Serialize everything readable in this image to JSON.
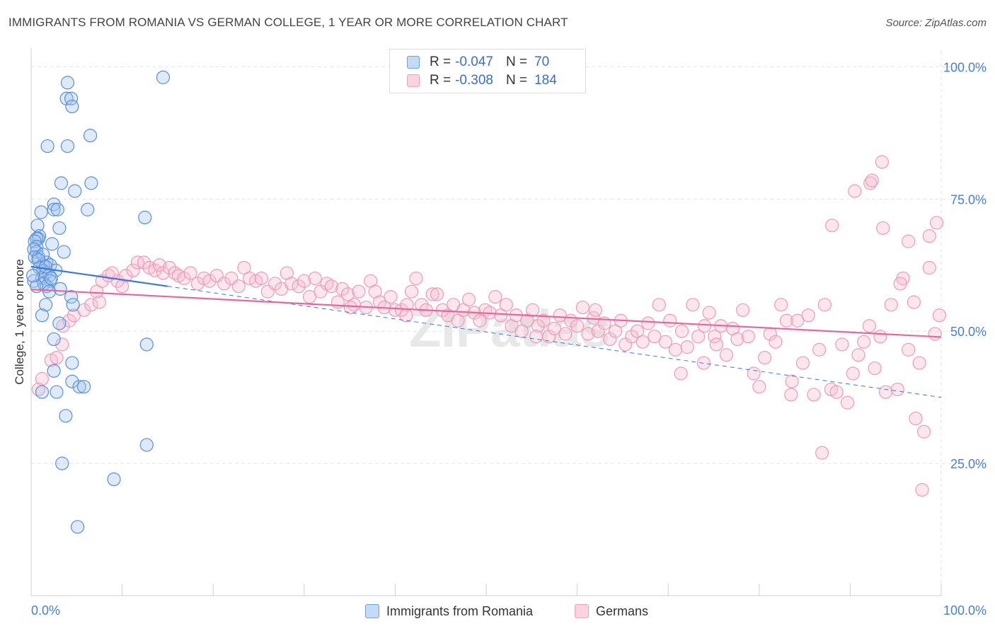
{
  "title": "IMMIGRANTS FROM ROMANIA VS GERMAN COLLEGE, 1 YEAR OR MORE CORRELATION CHART",
  "source": "Source: ZipAtlas.com",
  "watermark": "ZIPatlas",
  "legend": {
    "r_label": "R =",
    "n_label": "N =",
    "rows": [
      {
        "r": "-0.047",
        "n": "70",
        "color": "#6a9fe0"
      },
      {
        "r": "-0.308",
        "n": "184",
        "color": "#f0a0b8"
      }
    ]
  },
  "bottom_legend": [
    {
      "label": "Immigrants from Romania",
      "color": "#6a9fe0"
    },
    {
      "label": "Germans",
      "color": "#f0a0b8"
    }
  ],
  "chart_data": {
    "type": "scatter",
    "title": "IMMIGRANTS FROM ROMANIA VS GERMAN COLLEGE, 1 YEAR OR MORE CORRELATION CHART",
    "xlabel": "",
    "ylabel": "College, 1 year or more",
    "xlim": [
      0,
      100
    ],
    "ylim": [
      0,
      103
    ],
    "x_tick_labels": [
      "0.0%",
      "100.0%"
    ],
    "y_ticks": [
      25,
      50,
      75,
      100
    ],
    "y_tick_labels": [
      "25.0%",
      "50.0%",
      "75.0%",
      "100.0%"
    ],
    "grid": true,
    "legend_position": "top-center",
    "series": [
      {
        "name": "Immigrants from Romania",
        "color": "#6a9fe0",
        "trend": {
          "x": [
            0,
            15
          ],
          "y": [
            62.2,
            58.5
          ],
          "dashed_extension": {
            "x": [
              15,
              100
            ],
            "y": [
              58.5,
              37.5
            ]
          }
        },
        "points": [
          [
            4,
            97
          ],
          [
            14.5,
            98
          ],
          [
            3.9,
            94
          ],
          [
            4.4,
            94
          ],
          [
            4.5,
            92.5
          ],
          [
            6.5,
            87
          ],
          [
            1.8,
            85
          ],
          [
            4,
            85
          ],
          [
            3.3,
            78
          ],
          [
            6.6,
            78
          ],
          [
            4.8,
            76.5
          ],
          [
            2.5,
            74
          ],
          [
            6.2,
            73
          ],
          [
            2.5,
            73
          ],
          [
            2.9,
            73
          ],
          [
            1.1,
            72.5
          ],
          [
            12.5,
            71.5
          ],
          [
            0.7,
            70
          ],
          [
            3.1,
            69.5
          ],
          [
            0.9,
            68
          ],
          [
            0.8,
            67.5
          ],
          [
            0.6,
            67.5
          ],
          [
            0.4,
            67
          ],
          [
            2.3,
            66.5
          ],
          [
            0.6,
            66
          ],
          [
            0.6,
            65
          ],
          [
            0.3,
            65.5
          ],
          [
            3.6,
            65
          ],
          [
            0.8,
            64
          ],
          [
            0.4,
            64
          ],
          [
            1.7,
            63
          ],
          [
            1.3,
            62.5
          ],
          [
            2.1,
            62.5
          ],
          [
            1.3,
            61.5
          ],
          [
            2.7,
            61.5
          ],
          [
            1.6,
            61
          ],
          [
            2,
            60.5
          ],
          [
            1.2,
            60
          ],
          [
            0.3,
            59.5
          ],
          [
            2.1,
            59.5
          ],
          [
            1.4,
            59
          ],
          [
            1.7,
            58.5
          ],
          [
            0.6,
            58.5
          ],
          [
            2,
            57.5
          ],
          [
            4.4,
            56.5
          ],
          [
            1.6,
            55
          ],
          [
            4.6,
            55
          ],
          [
            1.2,
            53
          ],
          [
            3.1,
            51.5
          ],
          [
            2.5,
            48.5
          ],
          [
            12.7,
            47.5
          ],
          [
            4.5,
            44
          ],
          [
            2.5,
            42.5
          ],
          [
            4.5,
            40.5
          ],
          [
            5.3,
            39.5
          ],
          [
            5.8,
            39.5
          ],
          [
            2.8,
            38.5
          ],
          [
            1.2,
            38.5
          ],
          [
            3.8,
            34
          ],
          [
            12.7,
            28.5
          ],
          [
            3.4,
            25
          ],
          [
            9.1,
            22
          ],
          [
            5.1,
            13
          ],
          [
            1.3,
            64.5
          ],
          [
            0.8,
            63.5
          ],
          [
            2.2,
            60
          ],
          [
            3.2,
            58
          ],
          [
            0.9,
            62
          ],
          [
            1.6,
            62.2
          ],
          [
            0.2,
            60.5
          ]
        ]
      },
      {
        "name": "Germans",
        "color": "#f0a0b8",
        "trend": {
          "x": [
            0,
            100
          ],
          "y": [
            57.9,
            48.9
          ]
        },
        "points": [
          [
            1.2,
            41
          ],
          [
            0.8,
            39
          ],
          [
            2.2,
            44.5
          ],
          [
            2.8,
            45
          ],
          [
            3.4,
            47.5
          ],
          [
            3.5,
            51
          ],
          [
            4.2,
            52
          ],
          [
            4.7,
            53
          ],
          [
            5.8,
            54
          ],
          [
            6.6,
            55
          ],
          [
            7.5,
            55.5
          ],
          [
            7.2,
            57.5
          ],
          [
            7.8,
            59.5
          ],
          [
            8.5,
            60.5
          ],
          [
            9.5,
            59.5
          ],
          [
            10,
            58.5
          ],
          [
            8.9,
            61
          ],
          [
            10.4,
            60.5
          ],
          [
            11.2,
            61.5
          ],
          [
            11.7,
            63
          ],
          [
            12.4,
            63
          ],
          [
            13,
            62
          ],
          [
            13.6,
            61.5
          ],
          [
            14.1,
            62.5
          ],
          [
            14.5,
            61
          ],
          [
            15.2,
            62
          ],
          [
            15.8,
            61
          ],
          [
            16.2,
            60.5
          ],
          [
            16.8,
            60
          ],
          [
            17.5,
            61
          ],
          [
            18.3,
            59
          ],
          [
            19,
            60
          ],
          [
            19.6,
            59.5
          ],
          [
            20.4,
            60.5
          ],
          [
            21.2,
            59
          ],
          [
            22,
            60
          ],
          [
            22.8,
            58.5
          ],
          [
            23.4,
            62
          ],
          [
            24,
            60
          ],
          [
            24.7,
            59.5
          ],
          [
            25.3,
            60
          ],
          [
            26,
            57.5
          ],
          [
            26.8,
            59
          ],
          [
            27.5,
            58
          ],
          [
            28.1,
            61
          ],
          [
            28.6,
            59
          ],
          [
            29.4,
            58.5
          ],
          [
            30,
            59.5
          ],
          [
            30.6,
            56.5
          ],
          [
            31.2,
            60
          ],
          [
            31.8,
            57.5
          ],
          [
            32.5,
            59
          ],
          [
            33,
            58.5
          ],
          [
            33.7,
            55.5
          ],
          [
            34.2,
            58
          ],
          [
            34.8,
            57
          ],
          [
            35.5,
            55
          ],
          [
            36,
            57.5
          ],
          [
            36.8,
            54.5
          ],
          [
            37.3,
            59.5
          ],
          [
            37.8,
            57.5
          ],
          [
            38.3,
            55.5
          ],
          [
            38.8,
            54.5
          ],
          [
            39.5,
            56.5
          ],
          [
            40,
            54
          ],
          [
            40.7,
            54
          ],
          [
            41.3,
            55
          ],
          [
            41.8,
            57.5
          ],
          [
            42.3,
            60
          ],
          [
            42.9,
            55
          ],
          [
            43.4,
            54
          ],
          [
            44.1,
            57
          ],
          [
            44.6,
            57
          ],
          [
            45.2,
            54
          ],
          [
            45.8,
            53
          ],
          [
            46.4,
            55
          ],
          [
            46.9,
            52
          ],
          [
            47.5,
            54
          ],
          [
            48.1,
            56
          ],
          [
            48.7,
            53.5
          ],
          [
            49.3,
            52
          ],
          [
            49.9,
            54
          ],
          [
            50.4,
            53.5
          ],
          [
            51,
            56.5
          ],
          [
            51.6,
            53
          ],
          [
            52.2,
            55
          ],
          [
            52.8,
            51
          ],
          [
            53.3,
            53
          ],
          [
            53.9,
            50
          ],
          [
            54.5,
            52
          ],
          [
            55.1,
            54
          ],
          [
            55.7,
            51
          ],
          [
            56.3,
            52
          ],
          [
            56.9,
            49
          ],
          [
            57.5,
            50.5
          ],
          [
            58.1,
            53
          ],
          [
            58.7,
            49.5
          ],
          [
            59.3,
            52
          ],
          [
            60,
            51
          ],
          [
            60.6,
            54.5
          ],
          [
            61.2,
            49.5
          ],
          [
            61.8,
            52.5
          ],
          [
            62.3,
            50
          ],
          [
            63,
            51.5
          ],
          [
            63.6,
            48.5
          ],
          [
            64.2,
            50
          ],
          [
            64.8,
            52
          ],
          [
            65.3,
            47.5
          ],
          [
            66,
            49
          ],
          [
            66.6,
            50
          ],
          [
            67.2,
            48
          ],
          [
            67.8,
            51.5
          ],
          [
            68.5,
            49
          ],
          [
            69,
            55
          ],
          [
            69.7,
            48
          ],
          [
            70.2,
            52
          ],
          [
            70.8,
            46.5
          ],
          [
            71.5,
            50
          ],
          [
            72.1,
            47
          ],
          [
            72.7,
            55
          ],
          [
            73.3,
            49
          ],
          [
            74,
            51
          ],
          [
            74.5,
            53.5
          ],
          [
            75.1,
            49
          ],
          [
            75.8,
            51
          ],
          [
            76.4,
            45.5
          ],
          [
            77.1,
            50.5
          ],
          [
            77.6,
            48.5
          ],
          [
            78.2,
            54
          ],
          [
            78.8,
            49
          ],
          [
            79.4,
            42
          ],
          [
            80,
            39.5
          ],
          [
            80.6,
            45
          ],
          [
            81.2,
            49.5
          ],
          [
            81.8,
            48
          ],
          [
            82.4,
            55
          ],
          [
            83,
            52
          ],
          [
            83.6,
            40.5
          ],
          [
            84.2,
            52
          ],
          [
            84.8,
            44
          ],
          [
            85.4,
            53
          ],
          [
            86,
            38
          ],
          [
            86.6,
            46.5
          ],
          [
            87.2,
            55
          ],
          [
            87.9,
            39
          ],
          [
            88.5,
            38.5
          ],
          [
            89.1,
            47.5
          ],
          [
            89.7,
            36.5
          ],
          [
            90.3,
            42
          ],
          [
            90.9,
            45.5
          ],
          [
            91.5,
            48
          ],
          [
            92.1,
            51
          ],
          [
            92.7,
            43
          ],
          [
            93.3,
            49
          ],
          [
            93.9,
            38.5
          ],
          [
            94.5,
            55
          ],
          [
            95.2,
            39
          ],
          [
            95.8,
            60
          ],
          [
            96.4,
            46.5
          ],
          [
            97,
            55.5
          ],
          [
            97.6,
            44
          ],
          [
            98.1,
            31
          ],
          [
            98.7,
            62
          ],
          [
            99.3,
            49.5
          ],
          [
            99.8,
            53
          ],
          [
            88,
            70
          ],
          [
            90.5,
            76.5
          ],
          [
            92.2,
            78
          ],
          [
            92.4,
            78.5
          ],
          [
            93.6,
            69.5
          ],
          [
            95.5,
            59
          ],
          [
            96.4,
            67
          ],
          [
            97.2,
            33.5
          ],
          [
            97.9,
            20
          ],
          [
            98.7,
            68
          ],
          [
            99.5,
            70.5
          ],
          [
            93.5,
            82
          ],
          [
            86.9,
            27
          ],
          [
            83.5,
            38
          ],
          [
            71.4,
            42
          ],
          [
            55.5,
            49
          ],
          [
            41.2,
            53
          ],
          [
            62,
            54
          ],
          [
            35.1,
            54.5
          ],
          [
            73.9,
            44
          ],
          [
            75.3,
            47.5
          ]
        ]
      }
    ]
  }
}
